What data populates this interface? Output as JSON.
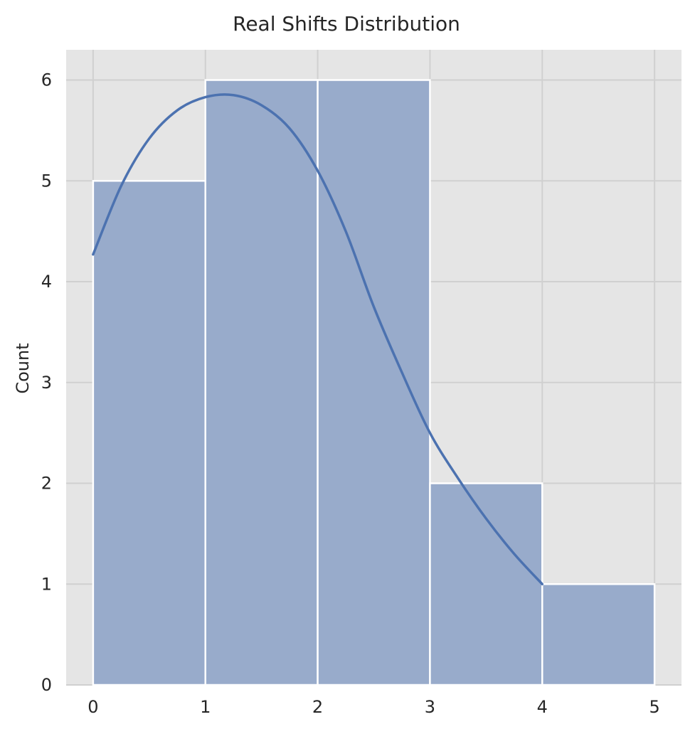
{
  "chart_data": {
    "type": "bar",
    "title": "Real Shifts Distribution",
    "xlabel": "",
    "ylabel": "Count",
    "bins": [
      {
        "x0": 0,
        "x1": 1,
        "count": 5
      },
      {
        "x0": 1,
        "x1": 2,
        "count": 6
      },
      {
        "x0": 2,
        "x1": 3,
        "count": 6
      },
      {
        "x0": 3,
        "x1": 4,
        "count": 2
      },
      {
        "x0": 4,
        "x1": 5,
        "count": 1
      }
    ],
    "xticks": [
      0,
      1,
      2,
      3,
      4,
      5
    ],
    "yticks": [
      0,
      1,
      2,
      3,
      4,
      5,
      6
    ],
    "xlim": [
      -0.24,
      5.24
    ],
    "ylim": [
      0,
      6.3
    ],
    "kde": {
      "x": [
        0,
        0.25,
        0.5,
        0.75,
        1.0,
        1.25,
        1.5,
        1.75,
        2.0,
        2.25,
        2.5,
        2.75,
        3.0,
        3.25,
        3.5,
        3.75,
        4.0
      ],
      "y": [
        4.27,
        4.95,
        5.42,
        5.7,
        5.83,
        5.85,
        5.75,
        5.52,
        5.1,
        4.5,
        3.75,
        3.1,
        2.5,
        2.05,
        1.65,
        1.3,
        1.0
      ]
    },
    "grid": true,
    "background": "#e5e5e5",
    "grid_color": "#d0d0d0",
    "bar_color": "#98abcb",
    "bar_edge_color": "#ffffff",
    "line_color": "#4c72b0"
  }
}
